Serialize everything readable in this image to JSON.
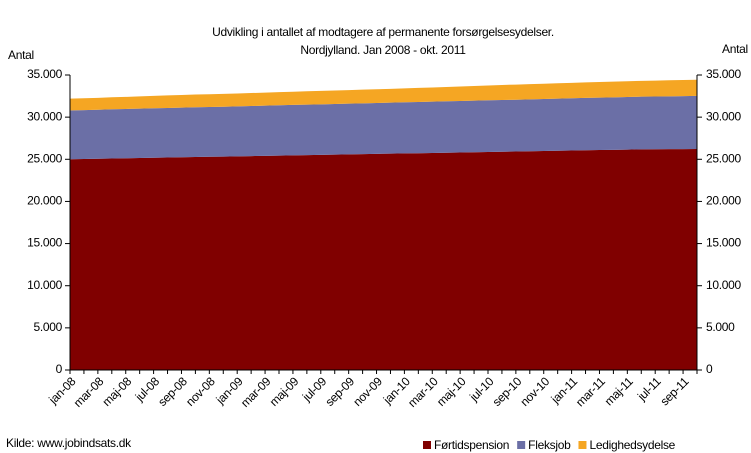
{
  "chart_data": {
    "type": "stacked_area",
    "title": "Udvikling i antallet af modtagere af permanente forsørgelsesydelser.",
    "subtitle": "Nordjylland. Jan 2008 - okt. 2011",
    "y_label": "Antal",
    "y2_label": "Antal",
    "source": "Kilde: www.jobindsats.dk",
    "categories": [
      "jan-08",
      null,
      "mar-08",
      null,
      "maj-08",
      null,
      "jul-08",
      null,
      "sep-08",
      null,
      "nov-08",
      null,
      "jan-09",
      null,
      "mar-09",
      null,
      "maj-09",
      null,
      "jul-09",
      null,
      "sep-09",
      null,
      "nov-09",
      null,
      "jan-10",
      null,
      "mar-10",
      null,
      "maj-10",
      null,
      "jul-10",
      null,
      "sep-10",
      null,
      "nov-10",
      null,
      "jan-11",
      null,
      "mar-11",
      null,
      "maj-11",
      null,
      "jul-11",
      null,
      "sep-11",
      null
    ],
    "series": [
      {
        "name": "Førtidspension",
        "color": "#800000",
        "values": [
          25000,
          25030,
          25060,
          25100,
          25120,
          25150,
          25180,
          25210,
          25240,
          25270,
          25300,
          25320,
          25350,
          25380,
          25410,
          25440,
          25470,
          25500,
          25520,
          25550,
          25580,
          25610,
          25640,
          25670,
          25700,
          25720,
          25750,
          25780,
          25810,
          25840,
          25870,
          25900,
          25920,
          25950,
          25980,
          26010,
          26040,
          26070,
          26100,
          26120,
          26150,
          26180,
          26190,
          26200,
          26210,
          26220
        ]
      },
      {
        "name": "Fleksjob",
        "color": "#6b6fa6",
        "values": [
          5800,
          5810,
          5820,
          5840,
          5850,
          5860,
          5870,
          5880,
          5890,
          5900,
          5910,
          5920,
          5930,
          5940,
          5950,
          5970,
          5980,
          5990,
          6000,
          6010,
          6020,
          6030,
          6040,
          6050,
          6060,
          6080,
          6090,
          6100,
          6110,
          6120,
          6130,
          6140,
          6150,
          6160,
          6170,
          6190,
          6200,
          6210,
          6220,
          6230,
          6240,
          6250,
          6260,
          6270,
          6280,
          6300
        ]
      },
      {
        "name": "Ledighedsydelse",
        "color": "#f5a623",
        "values": [
          1400,
          1400,
          1410,
          1420,
          1430,
          1450,
          1470,
          1500,
          1500,
          1510,
          1510,
          1520,
          1530,
          1540,
          1550,
          1560,
          1570,
          1580,
          1590,
          1600,
          1610,
          1620,
          1630,
          1640,
          1650,
          1670,
          1680,
          1700,
          1720,
          1740,
          1760,
          1780,
          1790,
          1800,
          1810,
          1820,
          1830,
          1840,
          1850,
          1860,
          1870,
          1880,
          1890,
          1900,
          1910,
          1920
        ]
      }
    ],
    "ylim": [
      0,
      35000
    ],
    "yticks": [
      0,
      {
        "value": 5000,
        "label": "5.000"
      },
      {
        "value": 10000,
        "label": "10.000"
      },
      {
        "value": 15000,
        "label": "15.000"
      },
      {
        "value": 20000,
        "label": "20.000"
      },
      {
        "value": 25000,
        "label": "25.000"
      },
      {
        "value": 30000,
        "label": "30.000"
      },
      {
        "value": 35000,
        "label": "35.000"
      }
    ],
    "y2lim": [
      0,
      35000
    ],
    "y2ticks": [
      0,
      {
        "value": 5000,
        "label": "5.000"
      },
      {
        "value": 10000,
        "label": "10.000"
      },
      {
        "value": 15000,
        "label": "15.000"
      },
      {
        "value": 20000,
        "label": "20.000"
      },
      {
        "value": 25000,
        "label": "25.000"
      },
      {
        "value": 30000,
        "label": "30.000"
      },
      {
        "value": 35000,
        "label": "35.000"
      }
    ],
    "legend": "bottom-right",
    "grid": false
  }
}
